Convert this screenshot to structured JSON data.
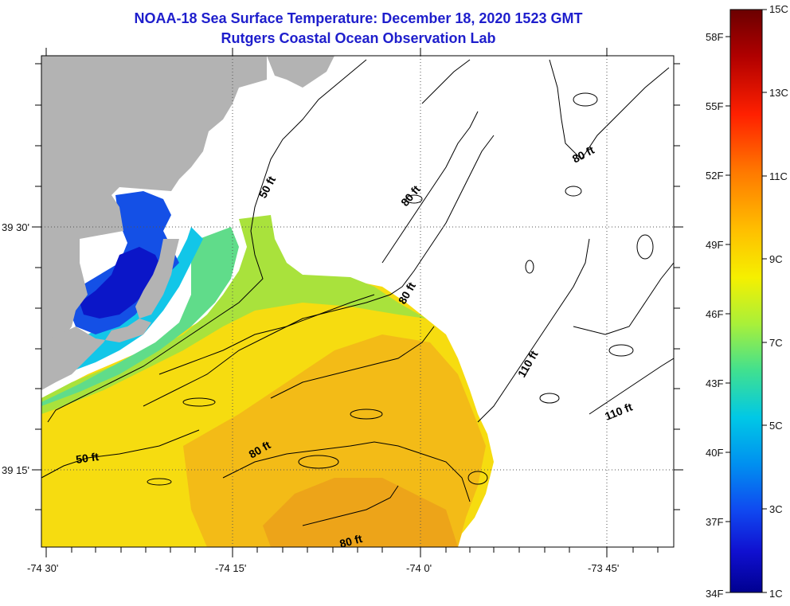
{
  "title": "NOAA-18 Sea Surface Temperature:  December 18, 2020 1523 GMT",
  "subtitle": "Rutgers Coastal Ocean Observation Lab",
  "axes": {
    "lon_ticks": [
      {
        "label": "-74 30'",
        "value": -74.5
      },
      {
        "label": "-74 15'",
        "value": -74.25
      },
      {
        "label": "-74 0'",
        "value": -74.0
      },
      {
        "label": "-73 45'",
        "value": -73.75
      }
    ],
    "lat_ticks": [
      {
        "label": "39 30'",
        "value": 39.5
      },
      {
        "label": "39 15'",
        "value": 39.25
      }
    ]
  },
  "contour_labels": [
    "50 ft",
    "50 ft",
    "80 ft",
    "80 ft",
    "80 ft",
    "80 ft",
    "80 ft",
    "110 ft",
    "110 ft"
  ],
  "colorbar": {
    "celsius": [
      "15C",
      "13C",
      "11C",
      "9C",
      "7C",
      "5C",
      "3C",
      "1C"
    ],
    "fahrenheit": [
      "58F",
      "55F",
      "52F",
      "49F",
      "46F",
      "43F",
      "40F",
      "37F",
      "34F"
    ],
    "colors": [
      "#6b0000",
      "#c00000",
      "#ff2000",
      "#ff7a00",
      "#ffc000",
      "#f5f000",
      "#a8f03a",
      "#40e090",
      "#00c8e6",
      "#0090f0",
      "#1048f0",
      "#1010d0",
      "#000090"
    ]
  },
  "colors": {
    "land": "#b3b3b3",
    "title": "#1e1ecc"
  }
}
